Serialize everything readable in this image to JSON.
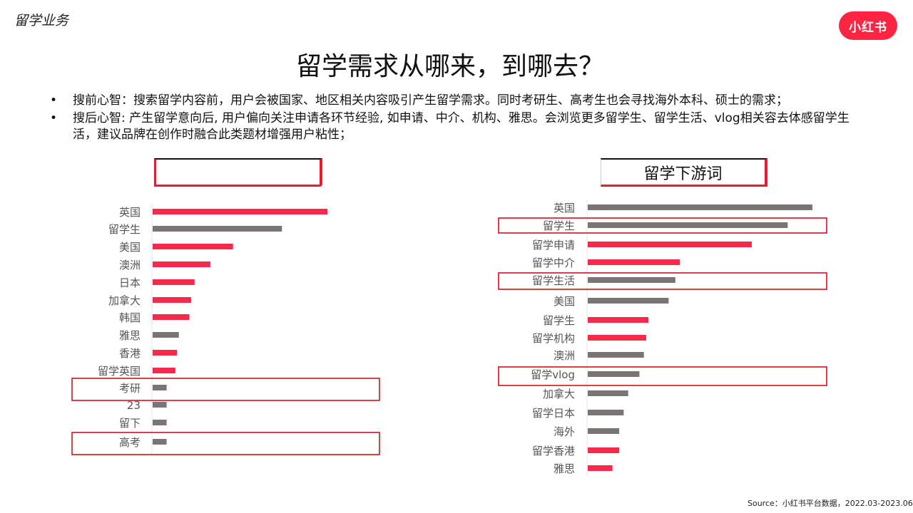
{
  "header": {
    "section_label": "留学业务",
    "logo_text": "小红书",
    "title": "留学需求从哪来，到哪去？"
  },
  "bullets": [
    "搜前心智：搜索留学内容前，用户会被国家、地区相关内容吸引产生留学需求。同时考研生、高考生也会寻找海外本科、硕士的需求；",
    "搜后心智: 产生留学意向后, 用户偏向关注申请各环节经验, 如申请、中介、机构、雅思。会浏览更多留学生、留学生活、vlog相关容去体感留学生活，建议品牌在创作时融合此类题材增强用户粘性；"
  ],
  "panels": {
    "left_title": "",
    "right_title": "留学下游词"
  },
  "footer": {
    "source": "Source：小红书平台数据，2022.03-2023.06"
  },
  "colors": {
    "red": "#f5294a",
    "gray": "#7a7475",
    "highlight_box": "#d0121b",
    "brand": "#ff2442"
  },
  "chart_data": [
    {
      "type": "bar",
      "orientation": "horizontal",
      "title": "",
      "categories": [
        "英国",
        "留学生",
        "美国",
        "澳洲",
        "日本",
        "加拿大",
        "韩国",
        "雅思",
        "香港",
        "留学英国",
        "考研",
        "23",
        "留下",
        "高考"
      ],
      "values": [
        100,
        74,
        46,
        33,
        24,
        22,
        21,
        15,
        14,
        13,
        8,
        8,
        8,
        8
      ],
      "bar_colors": [
        "red",
        "gray",
        "red",
        "red",
        "red",
        "red",
        "red",
        "gray",
        "red",
        "red",
        "gray",
        "gray",
        "gray",
        "gray"
      ],
      "highlighted": [
        "考研",
        "高考"
      ],
      "xlim": [
        0,
        100
      ]
    },
    {
      "type": "bar",
      "orientation": "horizontal",
      "title": "留学下游词",
      "categories": [
        "英国",
        "留学生",
        "留学申请",
        "留学中介",
        "留学生活",
        "美国",
        "留学生",
        "留学机构",
        "澳洲",
        "留学vlog",
        "加拿大",
        "留学日本",
        "海外",
        "留学香港",
        "雅思"
      ],
      "values": [
        100,
        89,
        73,
        41,
        39,
        36,
        27,
        26,
        25,
        23,
        18,
        16,
        14,
        14,
        11
      ],
      "bar_colors": [
        "gray",
        "gray",
        "red",
        "red",
        "gray",
        "gray",
        "red",
        "red",
        "gray",
        "gray",
        "gray",
        "gray",
        "gray",
        "red",
        "red"
      ],
      "highlighted_index": [
        1,
        4,
        9
      ],
      "xlim": [
        0,
        100
      ]
    }
  ]
}
